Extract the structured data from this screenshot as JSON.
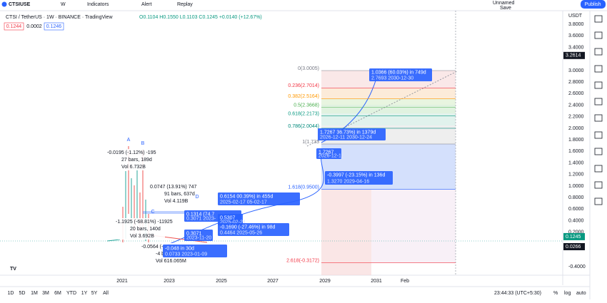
{
  "toolbar": {
    "symbol": "CTSIUSE",
    "interval": "W",
    "indicators": "Indicators",
    "alert": "Alert",
    "replay": "Replay",
    "layout_name": "Unnamed",
    "save": "Save",
    "publish": "Publish"
  },
  "legend": {
    "title": "CTSI / TetherUS · 1W · BINANCE · TradingView",
    "ohlc": "O0.1104 H0.1550 L0.1103 C0.1245 +0.0140 (+12.67%)",
    "bid": "0.1244",
    "spread": "0.0002",
    "ask": "0.1246"
  },
  "price_axis": {
    "currency": "USDT",
    "ticks": [
      "3.8000",
      "3.6000",
      "3.4000",
      "3.0000",
      "2.8000",
      "2.6000",
      "2.4000",
      "2.2000",
      "2.0000",
      "1.8000",
      "1.6000",
      "1.4000",
      "1.2000",
      "1.0000",
      "0.8000",
      "0.6000",
      "0.4000",
      "0.2000",
      "-0.4000"
    ],
    "marks": [
      "3.2614",
      "0.1245",
      "0.0266"
    ]
  },
  "time_axis": [
    "2021",
    "2023",
    "2025",
    "2027",
    "2029",
    "2031",
    "Feb"
  ],
  "fib": [
    "0(3.0005)",
    "0.236(2.7014)",
    "0.382(2.5164)",
    "0.5(2.3668)",
    "0.618(2.2173)",
    "0.786(2.0044)",
    "1(1.733",
    "1.618(0.9500)",
    "2.618(-0.3172)"
  ],
  "callouts": [
    [
      "1.0366 (60.03%) in 749d",
      "2.7693  2030-12-30"
    ],
    [
      "1.7267   36.73%) in 1379d",
      "2026-12-11   2030-12-24"
    ],
    [
      "1.7267",
      "2026-12-11"
    ],
    [
      "-0.3997 (-23.15%) in 136d",
      "1.3270  2029-04-16"
    ],
    [
      "0.6154    00.39%) in 455d",
      "2025-02-17    05-02-17"
    ],
    [
      "0.1314 (74.7",
      "0.3071  2023-"
    ],
    [
      "0.5307",
      "2025-02-24"
    ],
    [
      "-0.1690 (-27.46%) in 98d",
      "0.4464  2025-05-26"
    ],
    [
      "0.3071",
      "2023-11-20"
    ],
    [
      "-0.048     in 30d",
      "0.0733  2023-01-09"
    ]
  ],
  "letters": [
    "A",
    "B",
    "C",
    "D"
  ],
  "measures": [
    [
      "-0.0195 (-1.12%) -195",
      "27 bars, 189d",
      "Vol 6.732B"
    ],
    [
      "0.0747 (13.91%) 747",
      "91 bars, 637d",
      "Vol 4.119B"
    ],
    [
      "-1.1925 (-68.81%) -11925",
      "20 bars, 140d",
      "Vol 3.692B"
    ],
    [
      "-0.0564 (-",
      "-4 b",
      "Vol 616.065M"
    ]
  ],
  "range_bar": {
    "ranges": [
      "1D",
      "5D",
      "1M",
      "3M",
      "6M",
      "YTD",
      "1Y",
      "5Y",
      "All"
    ],
    "clock": "23:44:33 (UTC+5:30)",
    "percent": "%",
    "log": "log",
    "auto": "auto"
  }
}
